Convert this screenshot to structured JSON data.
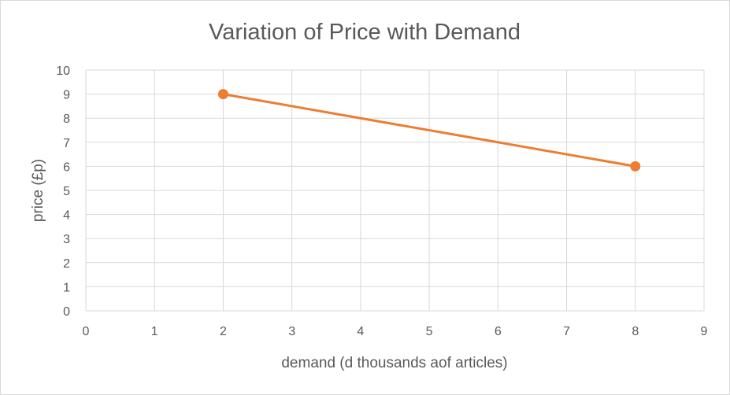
{
  "chart_data": {
    "type": "scatter",
    "title": "Variation of Price with Demand",
    "xlabel": "demand (d thousands aof articles)",
    "ylabel": "price (£p)",
    "xlim": [
      0,
      9
    ],
    "ylim": [
      0,
      10
    ],
    "xticks": [
      "0",
      "1",
      "2",
      "3",
      "4",
      "5",
      "6",
      "7",
      "8",
      "9"
    ],
    "yticks": [
      "0",
      "1",
      "2",
      "3",
      "4",
      "5",
      "6",
      "7",
      "8",
      "9",
      "10"
    ],
    "grid": true,
    "legend": "none",
    "series": [
      {
        "points": [
          {
            "x": 2,
            "y": 9
          },
          {
            "x": 8,
            "y": 6
          }
        ],
        "color": "#ed7d31",
        "markers": true,
        "line": true
      }
    ]
  }
}
